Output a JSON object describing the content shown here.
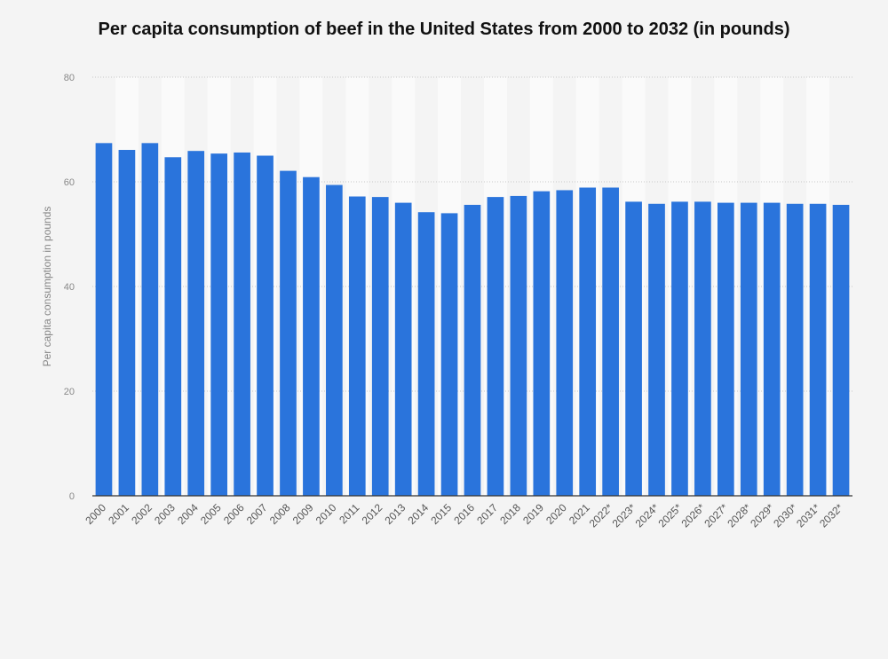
{
  "chart_data": {
    "type": "bar",
    "title": "Per capita consumption of beef in the United States from 2000 to 2032 (in pounds)",
    "xlabel": "",
    "ylabel": "Per capita consumption in pounds",
    "ylim": [
      0,
      80
    ],
    "yticks": [
      0,
      20,
      40,
      60,
      80
    ],
    "grid": true,
    "bar_color": "#2a74dc",
    "categories": [
      "2000",
      "2001",
      "2002",
      "2003",
      "2004",
      "2005",
      "2006",
      "2007",
      "2008",
      "2009",
      "2010",
      "2011",
      "2012",
      "2013",
      "2014",
      "2015",
      "2016",
      "2017",
      "2018",
      "2019",
      "2020",
      "2021",
      "2022*",
      "2023*",
      "2024*",
      "2025*",
      "2026*",
      "2027*",
      "2028*",
      "2029*",
      "2030*",
      "2031*",
      "2032*"
    ],
    "values": [
      67.4,
      66.1,
      67.4,
      64.7,
      65.9,
      65.4,
      65.6,
      65.0,
      62.1,
      60.9,
      59.4,
      57.2,
      57.1,
      56.0,
      54.2,
      54.0,
      55.6,
      57.1,
      57.3,
      58.2,
      58.4,
      58.9,
      58.9,
      56.2,
      55.8,
      56.2,
      56.2,
      56.0,
      56.0,
      56.0,
      55.8,
      55.8,
      55.6
    ]
  }
}
